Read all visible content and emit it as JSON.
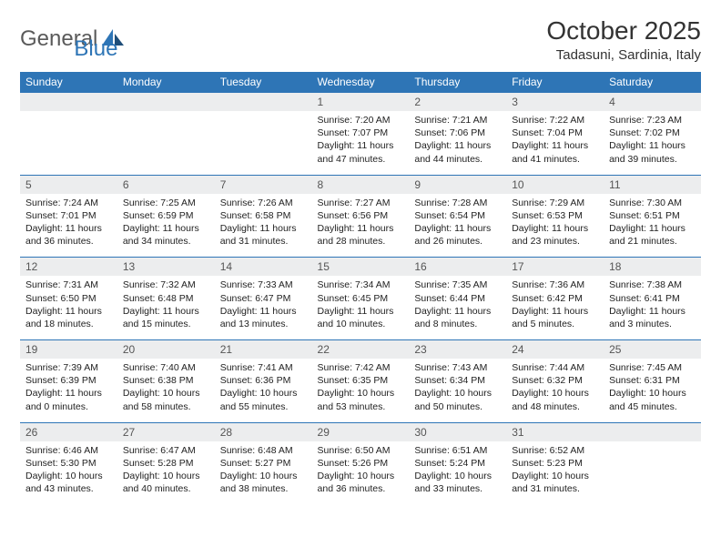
{
  "logo": {
    "text1": "General",
    "text2": "Blue"
  },
  "title": "October 2025",
  "location": "Tadasuni, Sardinia, Italy",
  "colors": {
    "accent": "#2e75b6",
    "daynum_bg": "#ecedee",
    "text": "#222222",
    "header_text": "#ffffff"
  },
  "day_headers": [
    "Sunday",
    "Monday",
    "Tuesday",
    "Wednesday",
    "Thursday",
    "Friday",
    "Saturday"
  ],
  "weeks": [
    [
      {
        "n": "",
        "sr": "",
        "ss": "",
        "d1": "",
        "d2": ""
      },
      {
        "n": "",
        "sr": "",
        "ss": "",
        "d1": "",
        "d2": ""
      },
      {
        "n": "",
        "sr": "",
        "ss": "",
        "d1": "",
        "d2": ""
      },
      {
        "n": "1",
        "sr": "Sunrise: 7:20 AM",
        "ss": "Sunset: 7:07 PM",
        "d1": "Daylight: 11 hours",
        "d2": "and 47 minutes."
      },
      {
        "n": "2",
        "sr": "Sunrise: 7:21 AM",
        "ss": "Sunset: 7:06 PM",
        "d1": "Daylight: 11 hours",
        "d2": "and 44 minutes."
      },
      {
        "n": "3",
        "sr": "Sunrise: 7:22 AM",
        "ss": "Sunset: 7:04 PM",
        "d1": "Daylight: 11 hours",
        "d2": "and 41 minutes."
      },
      {
        "n": "4",
        "sr": "Sunrise: 7:23 AM",
        "ss": "Sunset: 7:02 PM",
        "d1": "Daylight: 11 hours",
        "d2": "and 39 minutes."
      }
    ],
    [
      {
        "n": "5",
        "sr": "Sunrise: 7:24 AM",
        "ss": "Sunset: 7:01 PM",
        "d1": "Daylight: 11 hours",
        "d2": "and 36 minutes."
      },
      {
        "n": "6",
        "sr": "Sunrise: 7:25 AM",
        "ss": "Sunset: 6:59 PM",
        "d1": "Daylight: 11 hours",
        "d2": "and 34 minutes."
      },
      {
        "n": "7",
        "sr": "Sunrise: 7:26 AM",
        "ss": "Sunset: 6:58 PM",
        "d1": "Daylight: 11 hours",
        "d2": "and 31 minutes."
      },
      {
        "n": "8",
        "sr": "Sunrise: 7:27 AM",
        "ss": "Sunset: 6:56 PM",
        "d1": "Daylight: 11 hours",
        "d2": "and 28 minutes."
      },
      {
        "n": "9",
        "sr": "Sunrise: 7:28 AM",
        "ss": "Sunset: 6:54 PM",
        "d1": "Daylight: 11 hours",
        "d2": "and 26 minutes."
      },
      {
        "n": "10",
        "sr": "Sunrise: 7:29 AM",
        "ss": "Sunset: 6:53 PM",
        "d1": "Daylight: 11 hours",
        "d2": "and 23 minutes."
      },
      {
        "n": "11",
        "sr": "Sunrise: 7:30 AM",
        "ss": "Sunset: 6:51 PM",
        "d1": "Daylight: 11 hours",
        "d2": "and 21 minutes."
      }
    ],
    [
      {
        "n": "12",
        "sr": "Sunrise: 7:31 AM",
        "ss": "Sunset: 6:50 PM",
        "d1": "Daylight: 11 hours",
        "d2": "and 18 minutes."
      },
      {
        "n": "13",
        "sr": "Sunrise: 7:32 AM",
        "ss": "Sunset: 6:48 PM",
        "d1": "Daylight: 11 hours",
        "d2": "and 15 minutes."
      },
      {
        "n": "14",
        "sr": "Sunrise: 7:33 AM",
        "ss": "Sunset: 6:47 PM",
        "d1": "Daylight: 11 hours",
        "d2": "and 13 minutes."
      },
      {
        "n": "15",
        "sr": "Sunrise: 7:34 AM",
        "ss": "Sunset: 6:45 PM",
        "d1": "Daylight: 11 hours",
        "d2": "and 10 minutes."
      },
      {
        "n": "16",
        "sr": "Sunrise: 7:35 AM",
        "ss": "Sunset: 6:44 PM",
        "d1": "Daylight: 11 hours",
        "d2": "and 8 minutes."
      },
      {
        "n": "17",
        "sr": "Sunrise: 7:36 AM",
        "ss": "Sunset: 6:42 PM",
        "d1": "Daylight: 11 hours",
        "d2": "and 5 minutes."
      },
      {
        "n": "18",
        "sr": "Sunrise: 7:38 AM",
        "ss": "Sunset: 6:41 PM",
        "d1": "Daylight: 11 hours",
        "d2": "and 3 minutes."
      }
    ],
    [
      {
        "n": "19",
        "sr": "Sunrise: 7:39 AM",
        "ss": "Sunset: 6:39 PM",
        "d1": "Daylight: 11 hours",
        "d2": "and 0 minutes."
      },
      {
        "n": "20",
        "sr": "Sunrise: 7:40 AM",
        "ss": "Sunset: 6:38 PM",
        "d1": "Daylight: 10 hours",
        "d2": "and 58 minutes."
      },
      {
        "n": "21",
        "sr": "Sunrise: 7:41 AM",
        "ss": "Sunset: 6:36 PM",
        "d1": "Daylight: 10 hours",
        "d2": "and 55 minutes."
      },
      {
        "n": "22",
        "sr": "Sunrise: 7:42 AM",
        "ss": "Sunset: 6:35 PM",
        "d1": "Daylight: 10 hours",
        "d2": "and 53 minutes."
      },
      {
        "n": "23",
        "sr": "Sunrise: 7:43 AM",
        "ss": "Sunset: 6:34 PM",
        "d1": "Daylight: 10 hours",
        "d2": "and 50 minutes."
      },
      {
        "n": "24",
        "sr": "Sunrise: 7:44 AM",
        "ss": "Sunset: 6:32 PM",
        "d1": "Daylight: 10 hours",
        "d2": "and 48 minutes."
      },
      {
        "n": "25",
        "sr": "Sunrise: 7:45 AM",
        "ss": "Sunset: 6:31 PM",
        "d1": "Daylight: 10 hours",
        "d2": "and 45 minutes."
      }
    ],
    [
      {
        "n": "26",
        "sr": "Sunrise: 6:46 AM",
        "ss": "Sunset: 5:30 PM",
        "d1": "Daylight: 10 hours",
        "d2": "and 43 minutes."
      },
      {
        "n": "27",
        "sr": "Sunrise: 6:47 AM",
        "ss": "Sunset: 5:28 PM",
        "d1": "Daylight: 10 hours",
        "d2": "and 40 minutes."
      },
      {
        "n": "28",
        "sr": "Sunrise: 6:48 AM",
        "ss": "Sunset: 5:27 PM",
        "d1": "Daylight: 10 hours",
        "d2": "and 38 minutes."
      },
      {
        "n": "29",
        "sr": "Sunrise: 6:50 AM",
        "ss": "Sunset: 5:26 PM",
        "d1": "Daylight: 10 hours",
        "d2": "and 36 minutes."
      },
      {
        "n": "30",
        "sr": "Sunrise: 6:51 AM",
        "ss": "Sunset: 5:24 PM",
        "d1": "Daylight: 10 hours",
        "d2": "and 33 minutes."
      },
      {
        "n": "31",
        "sr": "Sunrise: 6:52 AM",
        "ss": "Sunset: 5:23 PM",
        "d1": "Daylight: 10 hours",
        "d2": "and 31 minutes."
      },
      {
        "n": "",
        "sr": "",
        "ss": "",
        "d1": "",
        "d2": ""
      }
    ]
  ]
}
